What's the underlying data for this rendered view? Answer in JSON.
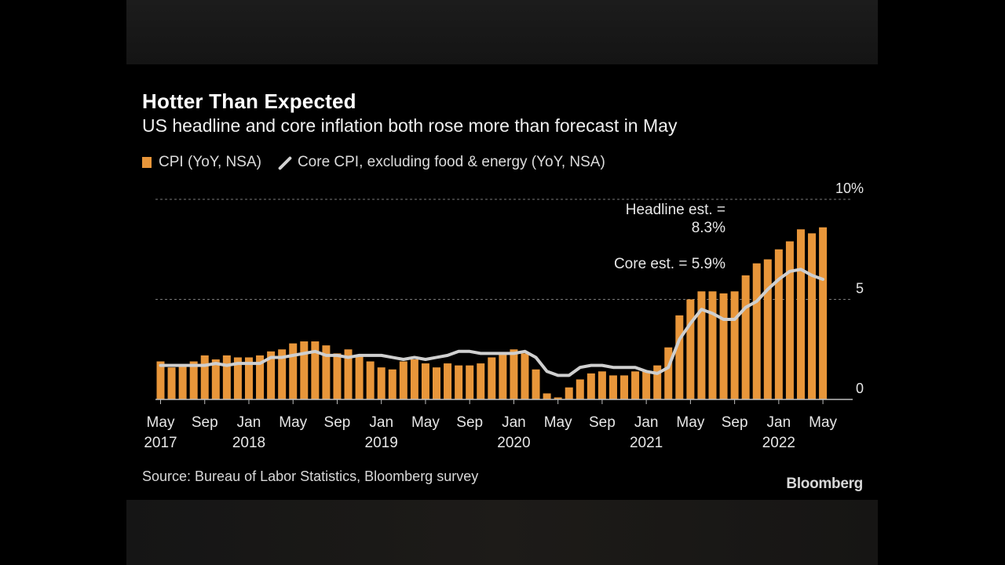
{
  "title": "Hotter Than Expected",
  "subtitle": "US headline and core inflation both rose more than forecast in May",
  "legend": {
    "cpi": "CPI (YoY, NSA)",
    "core": "Core CPI, excluding food & energy (YoY, NSA)"
  },
  "source": "Source: Bureau of Labor Statistics, Bloomberg survey",
  "brand": "Bloomberg",
  "colors": {
    "cpi": "#e8963a",
    "core": "#cfcfcf",
    "grid": "#7a7a7a",
    "text": "#e6e6e6"
  },
  "chart_data": {
    "type": "bar",
    "x_start": "2017-05",
    "x": [
      "2017-05",
      "2017-06",
      "2017-07",
      "2017-08",
      "2017-09",
      "2017-10",
      "2017-11",
      "2017-12",
      "2018-01",
      "2018-02",
      "2018-03",
      "2018-04",
      "2018-05",
      "2018-06",
      "2018-07",
      "2018-08",
      "2018-09",
      "2018-10",
      "2018-11",
      "2018-12",
      "2019-01",
      "2019-02",
      "2019-03",
      "2019-04",
      "2019-05",
      "2019-06",
      "2019-07",
      "2019-08",
      "2019-09",
      "2019-10",
      "2019-11",
      "2019-12",
      "2020-01",
      "2020-02",
      "2020-03",
      "2020-04",
      "2020-05",
      "2020-06",
      "2020-07",
      "2020-08",
      "2020-09",
      "2020-10",
      "2020-11",
      "2020-12",
      "2021-01",
      "2021-02",
      "2021-03",
      "2021-04",
      "2021-05",
      "2021-06",
      "2021-07",
      "2021-08",
      "2021-09",
      "2021-10",
      "2021-11",
      "2021-12",
      "2022-01",
      "2022-02",
      "2022-03",
      "2022-04",
      "2022-05"
    ],
    "series": [
      {
        "name": "CPI (YoY, NSA)",
        "type": "bar",
        "values": [
          1.9,
          1.6,
          1.7,
          1.9,
          2.2,
          2.0,
          2.2,
          2.1,
          2.1,
          2.2,
          2.4,
          2.5,
          2.8,
          2.9,
          2.9,
          2.7,
          2.3,
          2.5,
          2.2,
          1.9,
          1.6,
          1.5,
          1.9,
          2.0,
          1.8,
          1.6,
          1.8,
          1.7,
          1.7,
          1.8,
          2.1,
          2.3,
          2.5,
          2.3,
          1.5,
          0.3,
          0.1,
          0.6,
          1.0,
          1.3,
          1.4,
          1.2,
          1.2,
          1.4,
          1.4,
          1.7,
          2.6,
          4.2,
          5.0,
          5.4,
          5.4,
          5.3,
          5.4,
          6.2,
          6.8,
          7.0,
          7.5,
          7.9,
          8.5,
          8.3,
          8.6
        ]
      },
      {
        "name": "Core CPI, excluding food & energy (YoY, NSA)",
        "type": "line",
        "values": [
          1.7,
          1.7,
          1.7,
          1.7,
          1.7,
          1.8,
          1.7,
          1.8,
          1.8,
          1.8,
          2.1,
          2.1,
          2.2,
          2.3,
          2.4,
          2.2,
          2.2,
          2.1,
          2.2,
          2.2,
          2.2,
          2.1,
          2.0,
          2.1,
          2.0,
          2.1,
          2.2,
          2.4,
          2.4,
          2.3,
          2.3,
          2.3,
          2.3,
          2.4,
          2.1,
          1.4,
          1.2,
          1.2,
          1.6,
          1.7,
          1.7,
          1.6,
          1.6,
          1.6,
          1.4,
          1.3,
          1.6,
          3.0,
          3.8,
          4.5,
          4.3,
          4.0,
          4.0,
          4.6,
          4.9,
          5.5,
          6.0,
          6.4,
          6.5,
          6.2,
          6.0
        ]
      }
    ],
    "x_tick_labels": [
      {
        "index": 0,
        "month": "May",
        "year": "2017"
      },
      {
        "index": 4,
        "month": "Sep",
        "year": ""
      },
      {
        "index": 8,
        "month": "Jan",
        "year": "2018"
      },
      {
        "index": 12,
        "month": "May",
        "year": ""
      },
      {
        "index": 16,
        "month": "Sep",
        "year": ""
      },
      {
        "index": 20,
        "month": "Jan",
        "year": "2019"
      },
      {
        "index": 24,
        "month": "May",
        "year": ""
      },
      {
        "index": 28,
        "month": "Sep",
        "year": ""
      },
      {
        "index": 32,
        "month": "Jan",
        "year": "2020"
      },
      {
        "index": 36,
        "month": "May",
        "year": ""
      },
      {
        "index": 40,
        "month": "Sep",
        "year": ""
      },
      {
        "index": 44,
        "month": "Jan",
        "year": "2021"
      },
      {
        "index": 48,
        "month": "May",
        "year": ""
      },
      {
        "index": 52,
        "month": "Sep",
        "year": ""
      },
      {
        "index": 56,
        "month": "Jan",
        "year": "2022"
      },
      {
        "index": 60,
        "month": "May",
        "year": ""
      }
    ],
    "y_ticks": [
      {
        "value": 10,
        "label": "10%"
      },
      {
        "value": 5,
        "label": "5"
      },
      {
        "value": 0,
        "label": "0"
      }
    ],
    "ylim": [
      0,
      10
    ],
    "grid": true,
    "legend_position": "top-left",
    "annotations": [
      {
        "lines": [
          "Headline est. =",
          "8.3%"
        ]
      },
      {
        "lines": [
          "Core est. = 5.9%"
        ]
      }
    ]
  }
}
